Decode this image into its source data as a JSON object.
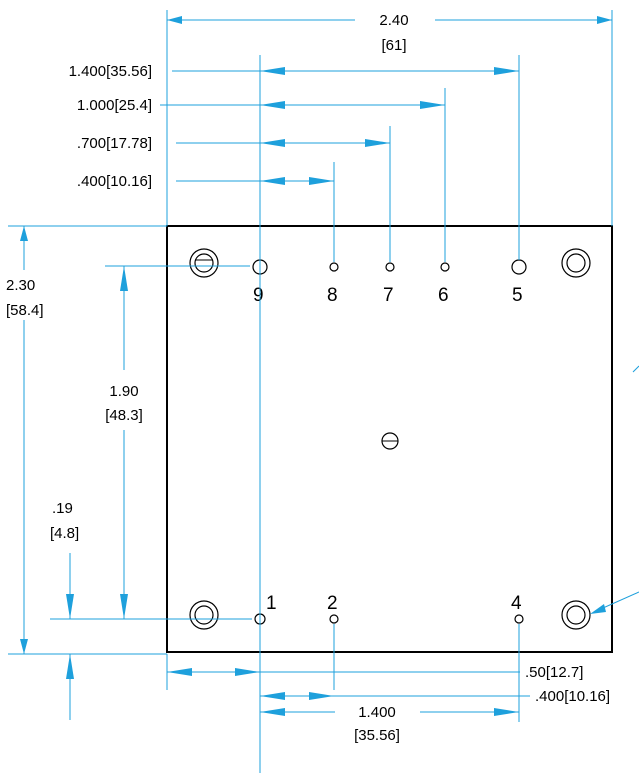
{
  "dimensions": {
    "overall_width": {
      "inch": "2.40",
      "mm": "[61]"
    },
    "pin5_offset": "1.400[35.56]",
    "pin6_offset": "1.000[25.4]",
    "pin7_offset": ".700[17.78]",
    "pin8_offset": ".400[10.16]",
    "overall_height": {
      "inch": "2.30",
      "mm": "[58.4]"
    },
    "pin_row_spacing": {
      "inch": "1.90",
      "mm": "[48.3]"
    },
    "bottom_row_offset": {
      "inch": ".19",
      "mm": "[4.8]"
    },
    "left_edge_offset": ".50[12.7]",
    "pin2_offset": ".400[10.16]",
    "pin4_offset": {
      "inch": "1.400",
      "mm": "[35.56]"
    }
  },
  "pins": {
    "p1": "1",
    "p2": "2",
    "p4": "4",
    "p5": "5",
    "p6": "6",
    "p7": "7",
    "p8": "8",
    "p9": "9"
  },
  "colors": {
    "dimension": "#1ea0dc",
    "outline": "#000000"
  }
}
